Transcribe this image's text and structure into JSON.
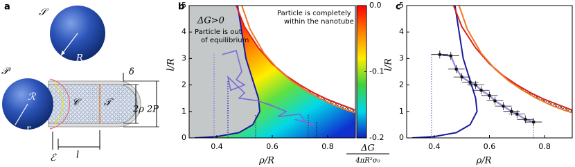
{
  "diagram": {
    "panel_label": "a",
    "labels": {
      "sphere": "𝒮",
      "radius": "R",
      "particle": "𝒫",
      "region_r": "ℛ",
      "region_c": "𝒞",
      "region_t": "𝒯",
      "small_r": "r",
      "edge": "ℰ",
      "length": "l",
      "delta": "δ",
      "two_rho": "2ρ",
      "two_p": "2P"
    }
  },
  "chart_data": [
    {
      "type": "line",
      "panel_label": "b",
      "xlabel": "ρ/R",
      "ylabel": "l/R",
      "xlim": [
        0.3,
        0.9
      ],
      "ylim": [
        0,
        5
      ],
      "xticks": [
        0.4,
        0.6,
        0.8
      ],
      "yticks": [
        0,
        1,
        2,
        3,
        4,
        5
      ],
      "annotations": [
        "ΔG>0",
        "Particle is out",
        "of equilibrium",
        "Particle is completely",
        "within the nanotube"
      ],
      "series": [
        {
          "color": "#1a1aa0",
          "x": [
            0.32,
            0.4,
            0.48,
            0.53,
            0.555,
            0.55,
            0.535,
            0.52,
            0.505,
            0.49,
            0.475
          ],
          "values": [
            0,
            0.05,
            0.2,
            0.5,
            1,
            1.5,
            2,
            2.5,
            3,
            4,
            5
          ]
        },
        {
          "color": "#e02020",
          "x": [
            0.47,
            0.5,
            0.55,
            0.6,
            0.65,
            0.7,
            0.75,
            0.8,
            0.85,
            0.9
          ],
          "values": [
            5,
            4.2,
            3.4,
            2.8,
            2.35,
            2.0,
            1.7,
            1.45,
            1.25,
            1.05
          ]
        },
        {
          "color": "#f07820",
          "x": [
            0.49,
            0.52,
            0.57,
            0.62,
            0.67,
            0.72,
            0.77,
            0.82,
            0.87,
            0.9
          ],
          "values": [
            5,
            4.1,
            3.2,
            2.6,
            2.15,
            1.8,
            1.5,
            1.25,
            1.05,
            0.95
          ]
        },
        {
          "color": "#7a6ad8",
          "x": [
            0.42,
            0.47,
            0.49,
            0.47,
            0.5,
            0.45,
            0.44,
            0.5,
            0.48,
            0.55,
            0.6,
            0.58,
            0.65,
            0.62,
            0.7,
            0.72,
            0.68,
            0.75,
            0.73
          ],
          "values": [
            3.15,
            3.3,
            2.5,
            2.2,
            2.0,
            1.8,
            2.3,
            1.7,
            1.5,
            1.4,
            1.2,
            1.3,
            1.0,
            0.8,
            0.9,
            0.6,
            0.7,
            0.5,
            0.5
          ]
        }
      ],
      "dotted_lines": {
        "x": [
          0.39,
          0.44,
          0.54,
          0.73,
          0.76
        ],
        "values": [
          3.2,
          2.2,
          0.9,
          0.9,
          0.6
        ],
        "color": [
          "#8a80e0",
          "#3030d0",
          "#444444",
          "#444444",
          "#222222"
        ]
      },
      "colorbar": {
        "label_numerator": "ΔG",
        "label_denominator": "4πR²σ₀",
        "clim": [
          -0.2,
          0.0
        ],
        "ticks": [
          {
            "value": 0.0,
            "label": "0.0"
          },
          {
            "value": -0.1,
            "label": "-0.1"
          },
          {
            "value": -0.2,
            "label": "-0.2"
          }
        ]
      }
    },
    {
      "type": "errorbar",
      "panel_label": "c",
      "xlabel": "ρ/R",
      "ylabel": "l/R",
      "xlim": [
        0.3,
        0.9
      ],
      "ylim": [
        0,
        5
      ],
      "xticks": [
        0.4,
        0.6,
        0.8
      ],
      "yticks": [
        0,
        1,
        2,
        3,
        4,
        5
      ],
      "series": [
        {
          "color": "#1a1aa0",
          "x": [
            0.32,
            0.4,
            0.48,
            0.53,
            0.555,
            0.55,
            0.535,
            0.52,
            0.505,
            0.49,
            0.475
          ],
          "values": [
            0,
            0.05,
            0.2,
            0.5,
            1,
            1.5,
            2,
            2.5,
            3,
            4,
            5
          ]
        },
        {
          "color": "#e02020",
          "x": [
            0.47,
            0.5,
            0.55,
            0.6,
            0.65,
            0.7,
            0.75,
            0.8,
            0.85,
            0.9
          ],
          "values": [
            5,
            4.2,
            3.4,
            2.8,
            2.35,
            2.0,
            1.7,
            1.45,
            1.25,
            1.05
          ]
        },
        {
          "color": "#f07820",
          "x": [
            0.49,
            0.52,
            0.57,
            0.62,
            0.67,
            0.72,
            0.77,
            0.82,
            0.87,
            0.9
          ],
          "values": [
            5,
            4.1,
            3.2,
            2.6,
            2.15,
            1.8,
            1.5,
            1.25,
            1.05,
            0.95
          ]
        }
      ],
      "points": {
        "color": "#9a90e8",
        "x": [
          0.42,
          0.46,
          0.48,
          0.5,
          0.53,
          0.55,
          0.57,
          0.6,
          0.62,
          0.65,
          0.68,
          0.7,
          0.73,
          0.76
        ],
        "values": [
          3.15,
          3.1,
          2.6,
          2.3,
          2.1,
          2.0,
          1.8,
          1.6,
          1.4,
          1.2,
          1.0,
          0.9,
          0.7,
          0.6
        ],
        "xerr": [
          0.03,
          0.03,
          0.03,
          0.03,
          0.03,
          0.03,
          0.03,
          0.03,
          0.03,
          0.03,
          0.03,
          0.03,
          0.03,
          0.03
        ],
        "yerr": [
          0.15,
          0.15,
          0.15,
          0.15,
          0.15,
          0.15,
          0.15,
          0.15,
          0.15,
          0.15,
          0.15,
          0.15,
          0.15,
          0.15
        ]
      },
      "dotted_lines": {
        "x": [
          0.39,
          0.76
        ],
        "values": [
          3.2,
          0.6
        ],
        "color": [
          "#8a80e0",
          "#8a80e0"
        ]
      }
    }
  ]
}
